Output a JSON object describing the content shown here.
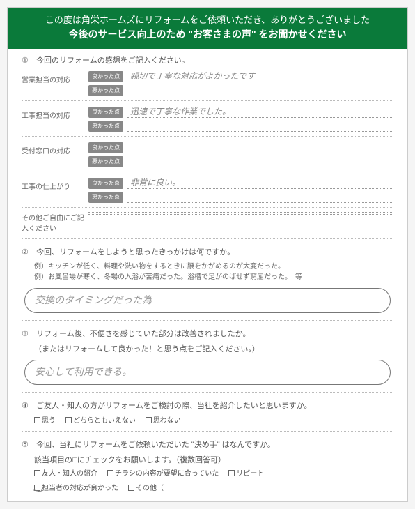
{
  "header": {
    "line1": "この度は角栄ホームズにリフォームをご依頼いただき、ありがとうございました",
    "line2": "今後のサービス向上のため \"お客さまの声\" をお聞かせください"
  },
  "q1": {
    "num": "①",
    "title": "今回のリフォームの感想をご記入ください。",
    "rows": [
      {
        "label": "営業担当の対応",
        "good": "親切で丁寧な対応がよかったです",
        "bad": ""
      },
      {
        "label": "工事担当の対応",
        "good": "迅速で丁寧な作業でした。",
        "bad": ""
      },
      {
        "label": "受付窓口の対応",
        "good": "",
        "bad": ""
      },
      {
        "label": "工事の仕上がり",
        "good": "非常に良い。",
        "bad": ""
      }
    ],
    "good_tag": "良かった点",
    "bad_tag": "悪かった点",
    "free_label": "その他ご自由にご記入ください"
  },
  "q2": {
    "num": "②",
    "title": "今回、リフォームをしようと思ったきっかけは何ですか。",
    "ex1": "例）キッチンが低く、料理や洗い物をするときに腰をかがめるのが大変だった。",
    "ex2": "例）お風呂場が寒く、冬場の入浴が苦痛だった。浴槽で足がのばせず窮屈だった。　等",
    "answer": "交換のタイミングだった為"
  },
  "q3": {
    "num": "③",
    "title": "リフォーム後、不便さを感じていた部分は改善されましたか。",
    "sub": "（またはリフォームして良かった！と思う点をご記入ください。）",
    "answer": "安心して利用できる。"
  },
  "q4": {
    "num": "④",
    "title": "ご友人・知人の方がリフォームをご検討の際、当社を紹介したいと思いますか。",
    "options": [
      "思う",
      "どちらともいえない",
      "思わない"
    ],
    "checked": []
  },
  "q5": {
    "num": "⑤",
    "title": "今回、当社にリフォームをご依頼いただいた \"決め手\" はなんですか。",
    "sub": "該当項目の□にチェックをお願いします。（複数回答可）",
    "options_row1": [
      "友人・知人の紹介",
      "チラシの内容が要望に合っていた",
      "リピート"
    ],
    "options_row2": [
      "担当者の対応が良かった",
      "その他（"
    ],
    "checked": [
      "担当者の対応が良かった"
    ]
  }
}
